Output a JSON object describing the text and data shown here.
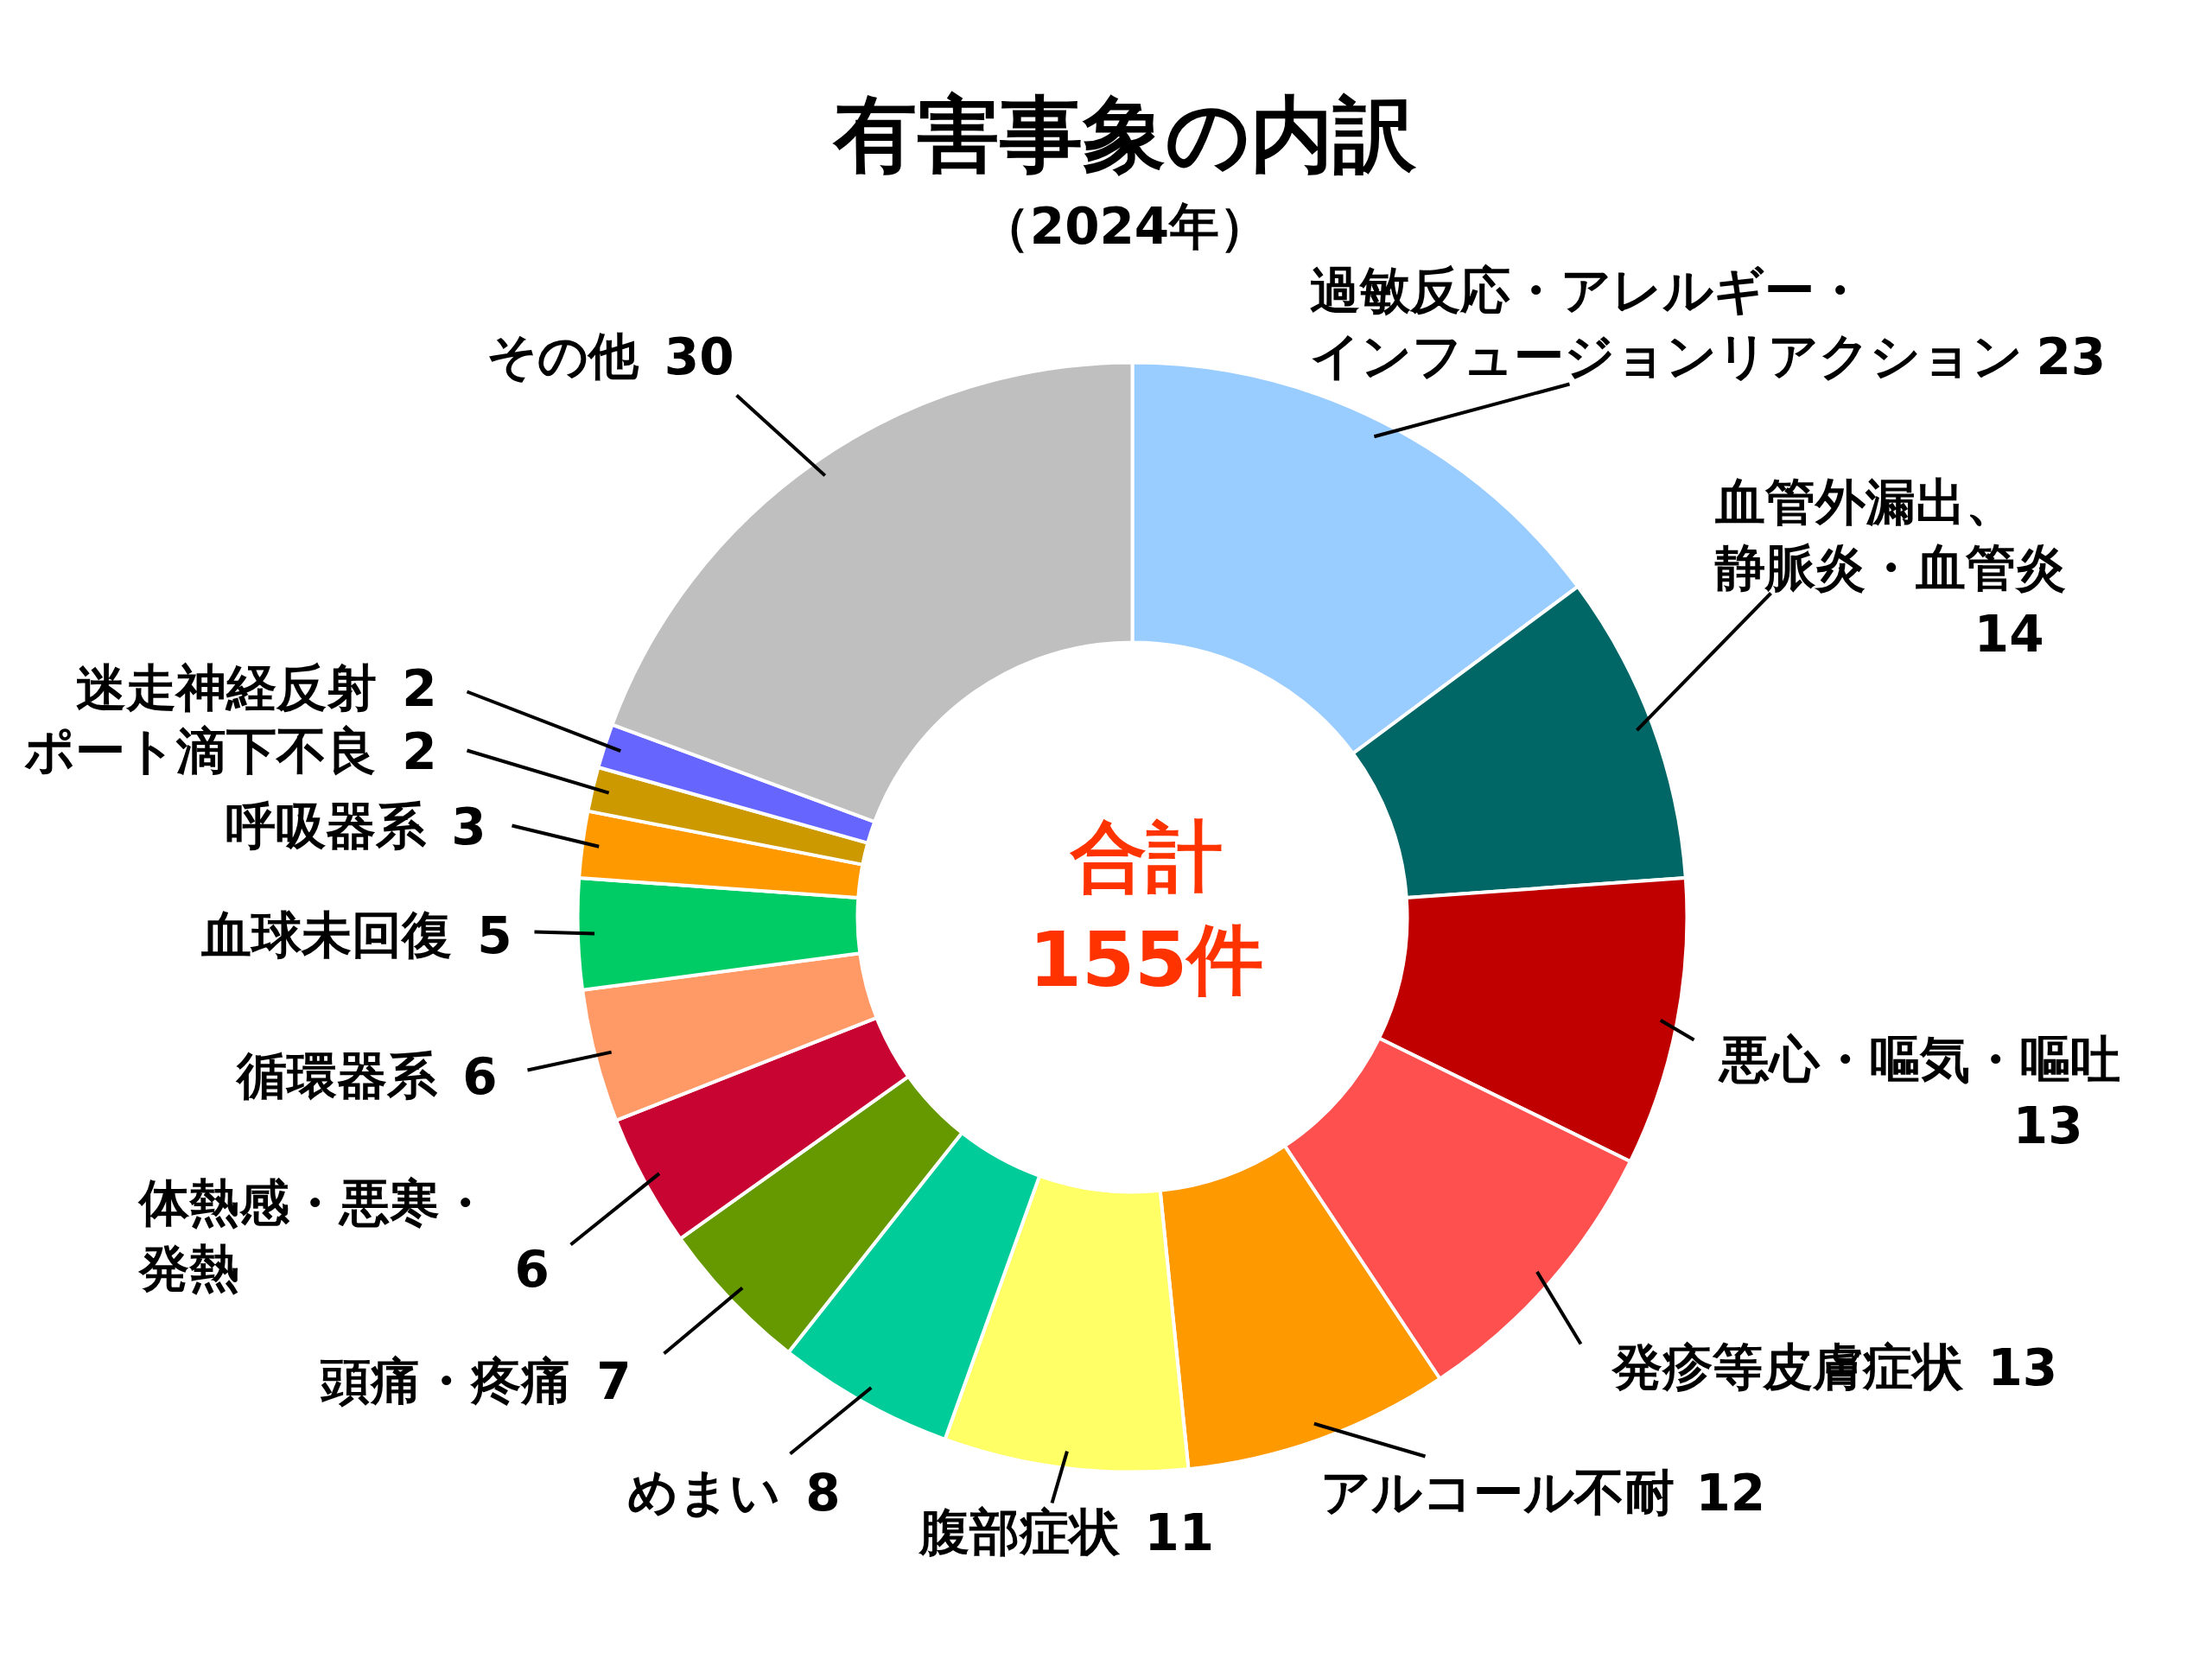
{
  "chart_data": {
    "type": "donut",
    "title": "有害事象の内訳",
    "subtitle": "（2024年）",
    "categories": [
      "過敏反応・アレルギー・インフュージョンリアクション",
      "血管外漏出、静脈炎・血管炎",
      "悪心・嘔気・嘔吐",
      "発疹等皮膚症状",
      "アルコール不耐",
      "腹部症状",
      "めまい",
      "頭痛・疼痛",
      "体熱感・悪寒・発熱",
      "循環器系",
      "血球未回復",
      "呼吸器系",
      "ポート滴下不良",
      "迷走神経反射",
      "その他"
    ],
    "values": [
      23,
      14,
      13,
      13,
      12,
      11,
      8,
      7,
      6,
      6,
      5,
      3,
      2,
      2,
      30
    ],
    "colors": [
      "#99ccff",
      "#006666",
      "#c00000",
      "#ff5050",
      "#ff9900",
      "#ffff66",
      "#00cc99",
      "#669900",
      "#c80532",
      "#ff9966",
      "#00cc66",
      "#ff9900",
      "#cc9900",
      "#6666ff",
      "#bfbfbf"
    ],
    "data_labels": true,
    "annotations": [
      "合計",
      "155件"
    ]
  }
}
